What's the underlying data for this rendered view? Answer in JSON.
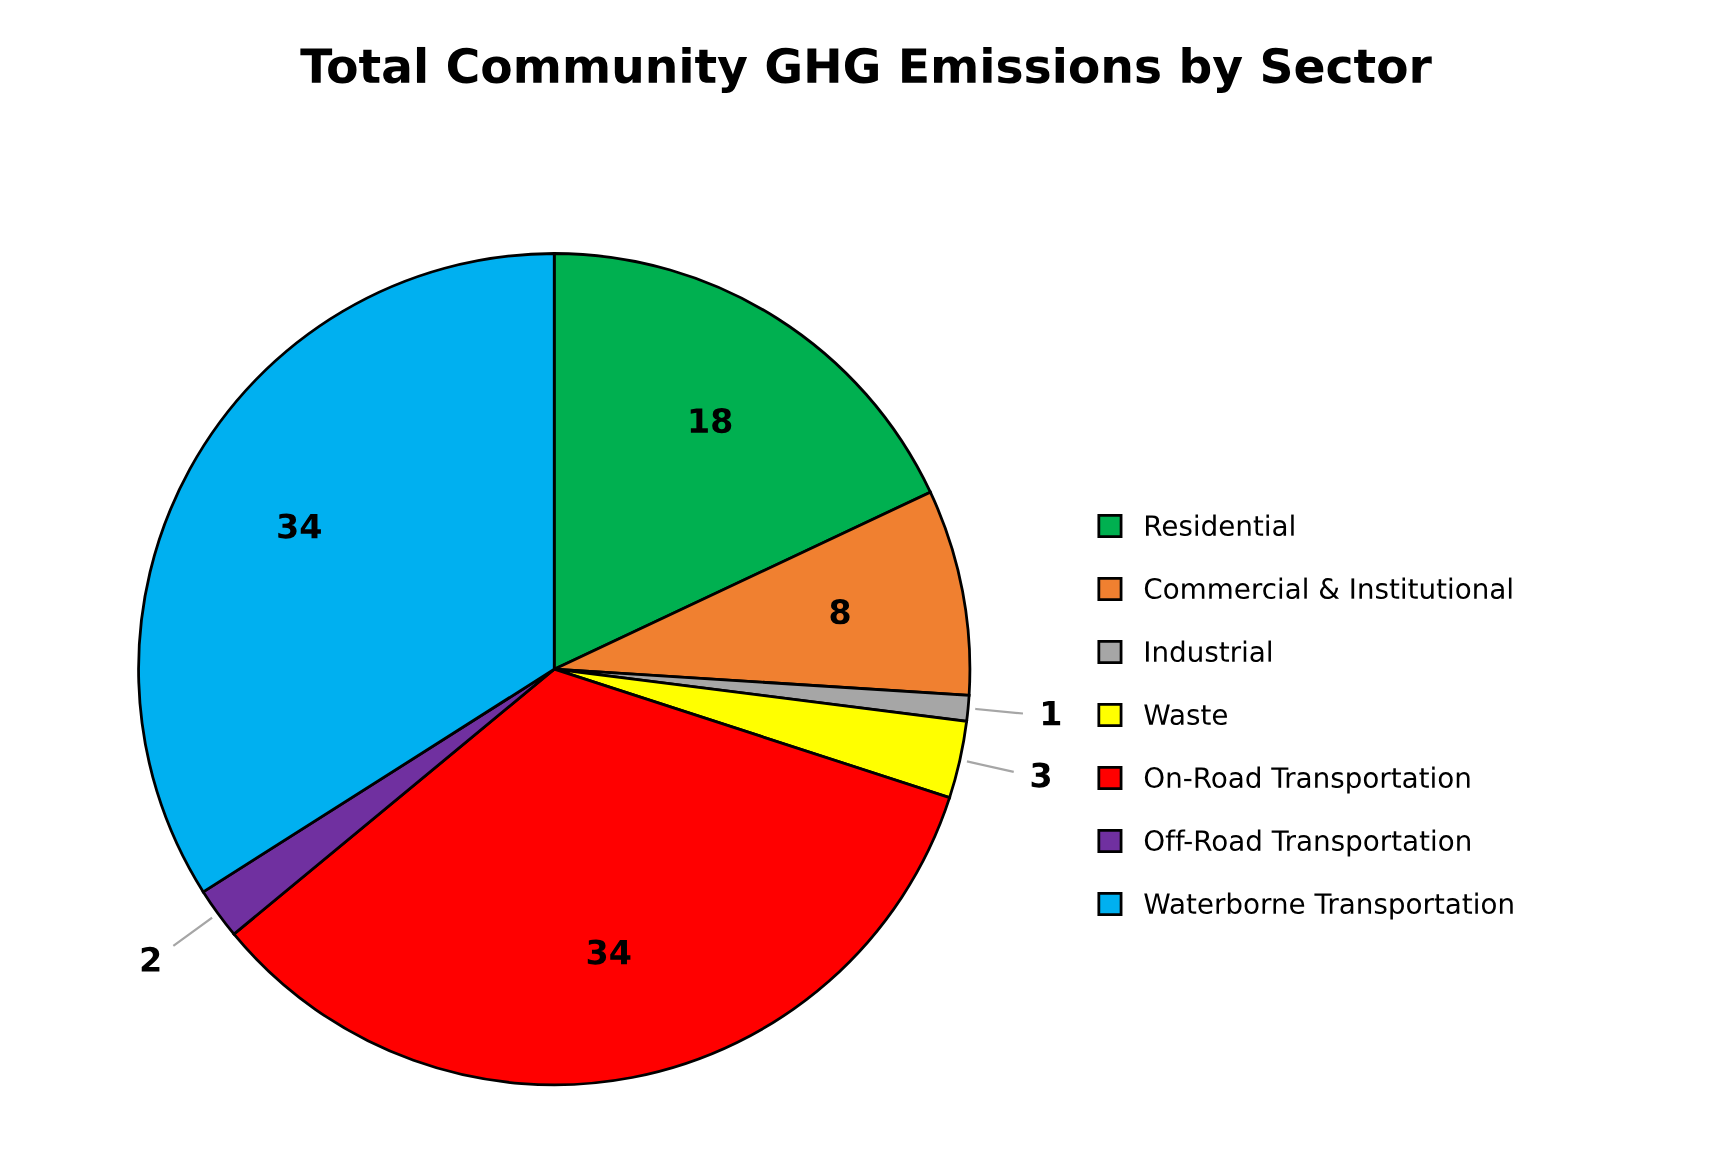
{
  "chart_data": {
    "type": "pie",
    "title": "Total Community GHG Emissions by Sector",
    "categories": [
      "Residential",
      "Commercial & Institutional",
      "Industrial",
      "Waste",
      "On-Road Transportation",
      "Off-Road Transportation",
      "Waterborne Transportation"
    ],
    "values": [
      18,
      8,
      1,
      3,
      34,
      2,
      34
    ],
    "colors": [
      "#00b050",
      "#f08030",
      "#a6a6a6",
      "#ffff00",
      "#ff0000",
      "#7030a0",
      "#00b0f0"
    ],
    "data_labels": true,
    "legend": "right"
  }
}
